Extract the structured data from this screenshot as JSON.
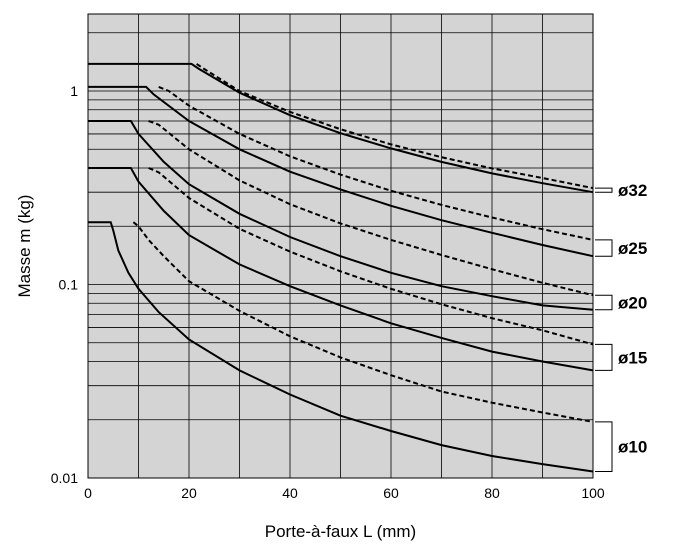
{
  "chart_data": {
    "type": "line",
    "title": "",
    "xlabel": "Porte-à-faux L (mm)",
    "ylabel": "Masse m (kg)",
    "x_scale": "linear",
    "y_scale": "log",
    "xlim": [
      0,
      100
    ],
    "ylim": [
      0.01,
      2.5
    ],
    "x_ticks": [
      "0",
      "20",
      "40",
      "60",
      "80",
      "100"
    ],
    "y_ticks": [
      "0.01",
      "0.1",
      "1"
    ],
    "grid": true,
    "background_color": "#d4d4d4",
    "series": [
      {
        "name": "ø10",
        "solid": [
          [
            0,
            0.21
          ],
          [
            4.5,
            0.21
          ],
          [
            5,
            0.19
          ],
          [
            6,
            0.15
          ],
          [
            8,
            0.115
          ],
          [
            10,
            0.095
          ],
          [
            14,
            0.072
          ],
          [
            20,
            0.052
          ],
          [
            30,
            0.036
          ],
          [
            40,
            0.027
          ],
          [
            50,
            0.021
          ],
          [
            60,
            0.0175
          ],
          [
            70,
            0.0148
          ],
          [
            80,
            0.013
          ],
          [
            90,
            0.0118
          ],
          [
            100,
            0.0108
          ]
        ],
        "dashed": [
          [
            9,
            0.21
          ],
          [
            10,
            0.2
          ],
          [
            12,
            0.17
          ],
          [
            15,
            0.14
          ],
          [
            20,
            0.104
          ],
          [
            30,
            0.073
          ],
          [
            40,
            0.054
          ],
          [
            50,
            0.042
          ],
          [
            60,
            0.034
          ],
          [
            70,
            0.028
          ],
          [
            80,
            0.0245
          ],
          [
            90,
            0.0218
          ],
          [
            100,
            0.0195
          ]
        ]
      },
      {
        "name": "ø15",
        "solid": [
          [
            0,
            0.4
          ],
          [
            8.5,
            0.4
          ],
          [
            10,
            0.34
          ],
          [
            15,
            0.24
          ],
          [
            20,
            0.18
          ],
          [
            30,
            0.127
          ],
          [
            40,
            0.098
          ],
          [
            50,
            0.078
          ],
          [
            60,
            0.063
          ],
          [
            70,
            0.053
          ],
          [
            80,
            0.045
          ],
          [
            90,
            0.04
          ],
          [
            100,
            0.036
          ]
        ],
        "dashed": [
          [
            12,
            0.4
          ],
          [
            14,
            0.38
          ],
          [
            20,
            0.28
          ],
          [
            30,
            0.194
          ],
          [
            40,
            0.148
          ],
          [
            50,
            0.117
          ],
          [
            60,
            0.095
          ],
          [
            70,
            0.079
          ],
          [
            80,
            0.067
          ],
          [
            90,
            0.058
          ],
          [
            100,
            0.049
          ]
        ]
      },
      {
        "name": "ø20",
        "solid": [
          [
            0,
            0.7
          ],
          [
            8.5,
            0.7
          ],
          [
            10,
            0.6
          ],
          [
            15,
            0.43
          ],
          [
            20,
            0.33
          ],
          [
            30,
            0.232
          ],
          [
            40,
            0.176
          ],
          [
            50,
            0.14
          ],
          [
            60,
            0.115
          ],
          [
            70,
            0.098
          ],
          [
            80,
            0.087
          ],
          [
            90,
            0.078
          ],
          [
            100,
            0.074
          ]
        ],
        "dashed": [
          [
            12,
            0.7
          ],
          [
            14,
            0.67
          ],
          [
            20,
            0.5
          ],
          [
            30,
            0.345
          ],
          [
            40,
            0.26
          ],
          [
            50,
            0.207
          ],
          [
            60,
            0.17
          ],
          [
            70,
            0.142
          ],
          [
            80,
            0.12
          ],
          [
            90,
            0.102
          ],
          [
            100,
            0.088
          ]
        ]
      },
      {
        "name": "ø25",
        "solid": [
          [
            0,
            1.05
          ],
          [
            11.5,
            1.05
          ],
          [
            13,
            0.96
          ],
          [
            20,
            0.7
          ],
          [
            30,
            0.5
          ],
          [
            40,
            0.383
          ],
          [
            50,
            0.31
          ],
          [
            60,
            0.255
          ],
          [
            70,
            0.215
          ],
          [
            80,
            0.185
          ],
          [
            90,
            0.16
          ],
          [
            100,
            0.14
          ]
        ],
        "dashed": [
          [
            14,
            1.05
          ],
          [
            16,
            1.0
          ],
          [
            20,
            0.84
          ],
          [
            30,
            0.6
          ],
          [
            40,
            0.46
          ],
          [
            50,
            0.37
          ],
          [
            60,
            0.305
          ],
          [
            70,
            0.258
          ],
          [
            80,
            0.222
          ],
          [
            90,
            0.193
          ],
          [
            100,
            0.17
          ]
        ]
      },
      {
        "name": "ø32",
        "solid": [
          [
            0,
            1.38
          ],
          [
            20.5,
            1.38
          ],
          [
            22,
            1.3
          ],
          [
            30,
            0.98
          ],
          [
            40,
            0.75
          ],
          [
            50,
            0.605
          ],
          [
            60,
            0.505
          ],
          [
            70,
            0.43
          ],
          [
            80,
            0.375
          ],
          [
            90,
            0.334
          ],
          [
            100,
            0.3
          ]
        ],
        "dashed": [
          [
            21.5,
            1.38
          ],
          [
            23,
            1.3
          ],
          [
            30,
            1.0
          ],
          [
            40,
            0.78
          ],
          [
            50,
            0.635
          ],
          [
            60,
            0.53
          ],
          [
            70,
            0.455
          ],
          [
            80,
            0.398
          ],
          [
            90,
            0.355
          ],
          [
            100,
            0.315
          ]
        ]
      }
    ]
  }
}
